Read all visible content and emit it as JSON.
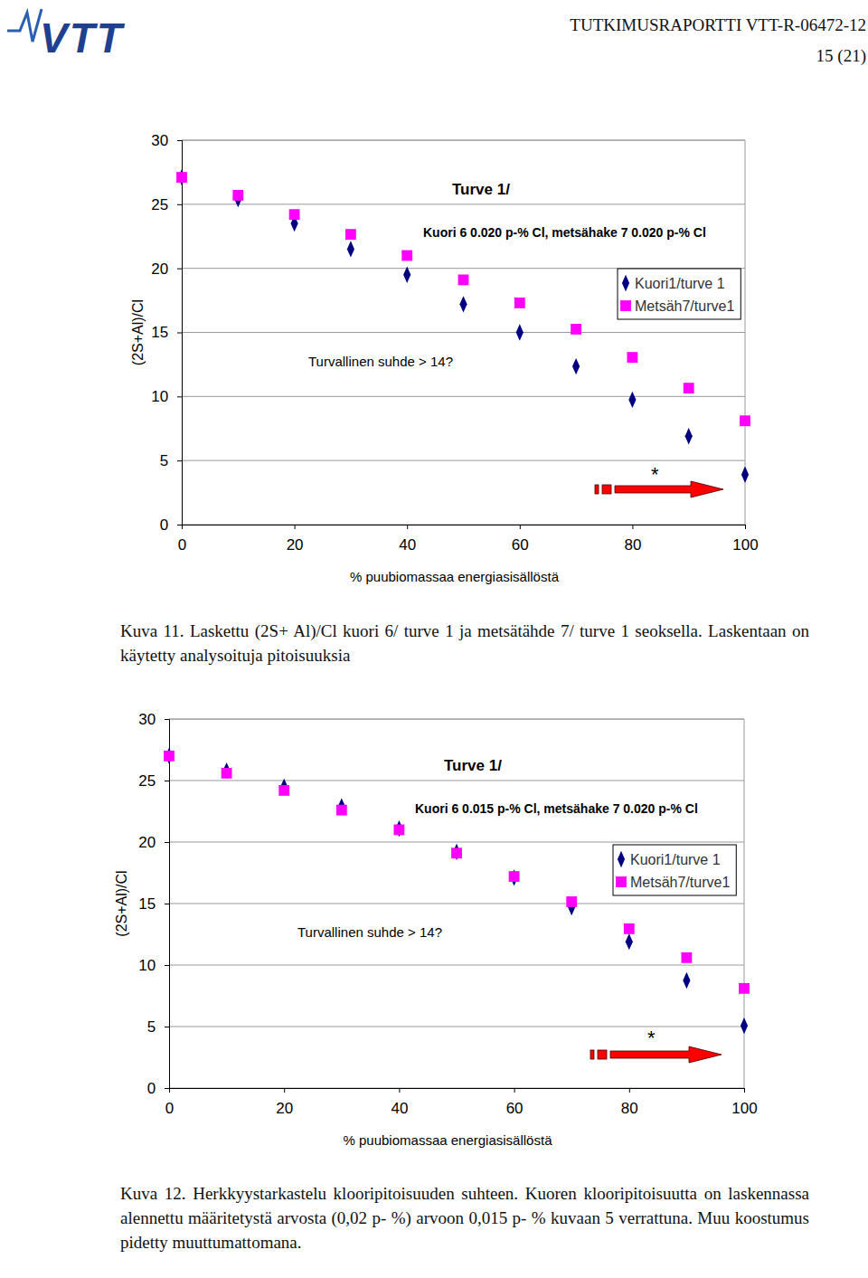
{
  "header": {
    "logo": "VTT",
    "report": "TUTKIMUSRAPORTTI VTT-R-06472-12",
    "page": "15 (21)"
  },
  "chart_data": [
    {
      "type": "scatter",
      "title": "Turve 1/",
      "subtitle": "Kuori 6 0.020 p-% Cl, metsähake 7 0.020 p-% Cl",
      "x_label": "% puubiomassaa energiasisällöstä",
      "y_label": "(2S+Al)/Cl",
      "x": [
        0,
        10,
        20,
        30,
        40,
        50,
        60,
        70,
        80,
        90,
        100
      ],
      "series": [
        {
          "name": "Kuori1/turve 1",
          "color": "#000080",
          "marker": "diamond",
          "values": [
            27.1,
            25.4,
            23.5,
            21.5,
            19.5,
            17.2,
            15.0,
            12.35,
            9.75,
            6.9,
            3.9
          ]
        },
        {
          "name": "Metsäh7/turve1",
          "color": "#ff00ff",
          "marker": "square",
          "values": [
            27.1,
            25.7,
            24.2,
            22.65,
            21.0,
            19.1,
            17.3,
            15.25,
            13.05,
            10.65,
            8.1
          ]
        }
      ],
      "xlim": [
        0,
        100
      ],
      "xticks": [
        0,
        20,
        40,
        60,
        80,
        100
      ],
      "ylim": [
        0,
        30
      ],
      "yticks": [
        0,
        5,
        10,
        15,
        20,
        25,
        30
      ],
      "grid": true,
      "legend": "right",
      "annotations": [
        {
          "text": "Turvallinen suhde > 14?"
        },
        {
          "text": "*"
        }
      ]
    },
    {
      "type": "scatter",
      "title": "Turve 1/",
      "subtitle": "Kuori 6 0.015 p-% Cl, metsähake 7 0.020 p-% Cl",
      "x_label": "% puubiomassaa energiasisällöstä",
      "y_label": "(2S+Al)/Cl",
      "x": [
        0,
        10,
        20,
        30,
        40,
        50,
        60,
        70,
        80,
        90,
        100
      ],
      "series": [
        {
          "name": "Kuori1/turve 1",
          "color": "#000080",
          "marker": "diamond",
          "values": [
            27.0,
            25.8,
            24.5,
            22.9,
            21.1,
            19.2,
            17.1,
            14.7,
            11.9,
            8.75,
            5.07
          ]
        },
        {
          "name": "Metsäh7/turve1",
          "color": "#ff00ff",
          "marker": "square",
          "values": [
            27.0,
            25.6,
            24.2,
            22.6,
            21.0,
            19.1,
            17.2,
            15.15,
            12.95,
            10.6,
            8.1
          ]
        }
      ],
      "xlim": [
        0,
        100
      ],
      "xticks": [
        0,
        20,
        40,
        60,
        80,
        100
      ],
      "ylim": [
        0,
        30
      ],
      "yticks": [
        0,
        5,
        10,
        15,
        20,
        25,
        30
      ],
      "grid": true,
      "legend": "right",
      "annotations": [
        {
          "text": "Turvallinen suhde > 14?"
        },
        {
          "text": "*"
        }
      ]
    }
  ],
  "captions": [
    "Kuva 11. Laskettu (2S+ Al)/Cl kuori 6/ turve 1 ja metsätähde 7/ turve 1 seoksella. Laskentaan on käytetty analysoituja pitoisuuksia",
    "Kuva 12. Herkkyystarkastelu klooripitoisuuden suhteen. Kuoren klooripitoisuutta on laskennassa alennettu määritetystä arvosta (0,02 p- %) arvoon 0,015 p- % kuvaan 5 verrattuna. Muu koostumus pidetty muuttumattomana."
  ]
}
